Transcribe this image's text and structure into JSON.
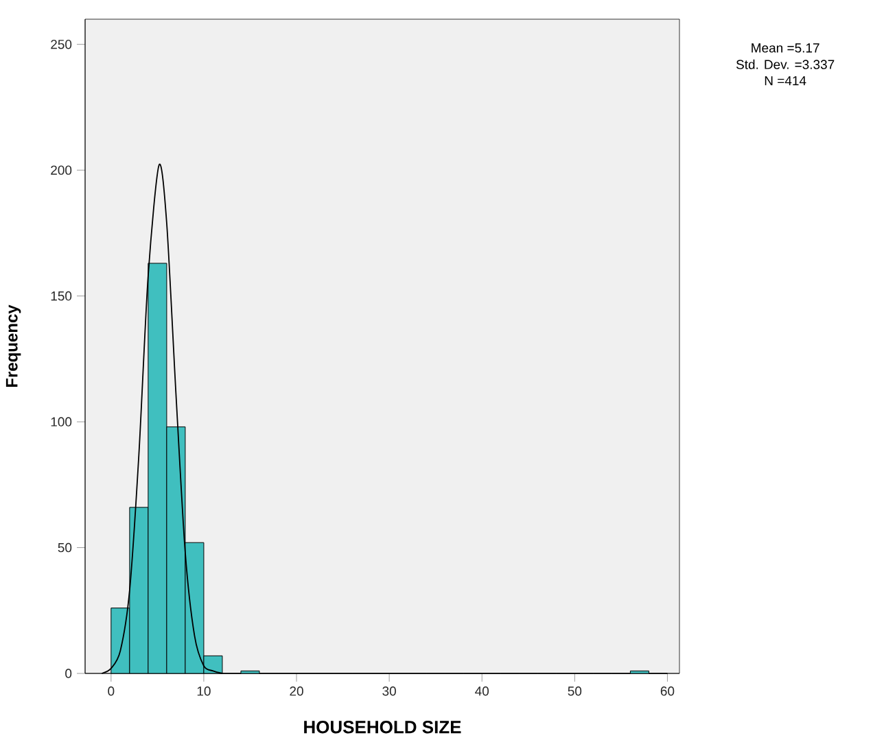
{
  "chart_data": {
    "type": "histogram",
    "xlabel": "HOUSEHOLD SIZE",
    "ylabel": "Frequency",
    "annotations": [
      "Mean =5.17",
      "Std. Dev. =3.337",
      "N =414"
    ],
    "bins": [
      0,
      2,
      4,
      6,
      8,
      10,
      12,
      14,
      16,
      18,
      20,
      22,
      24,
      26,
      28,
      30,
      32,
      34,
      36,
      38,
      40,
      42,
      44,
      46,
      48,
      50,
      52,
      54,
      56,
      58,
      60
    ],
    "values": [
      26,
      66,
      163,
      98,
      52,
      7,
      0,
      1,
      0,
      0,
      0,
      0,
      0,
      0,
      0,
      0,
      0,
      0,
      0,
      0,
      0,
      0,
      0,
      0,
      0,
      0,
      0,
      0,
      1,
      0
    ],
    "color": "#40bfbf",
    "series": [
      {
        "type": "line",
        "color": "#000000",
        "x": [
          -1,
          0,
          1,
          2,
          3,
          4,
          5.17,
          6,
          7,
          8,
          9,
          10,
          11,
          12
        ],
        "values": [
          0,
          2,
          9,
          33,
          87,
          158,
          202,
          179,
          111,
          48,
          15,
          3,
          1,
          0
        ]
      }
    ],
    "xlim": [
      -2.8,
      61.3
    ],
    "ylim": [
      0,
      260
    ],
    "xticks": [
      0,
      10,
      20,
      30,
      40,
      50,
      60
    ],
    "yticks": [
      0,
      50,
      100,
      150,
      200,
      250
    ],
    "grid": false
  }
}
